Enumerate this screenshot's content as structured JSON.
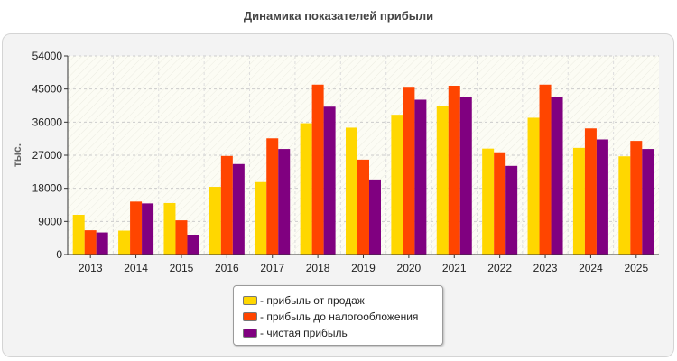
{
  "chart_data": {
    "type": "bar",
    "title": "Динамика показателей прибыли",
    "ylabel": "тыс.",
    "xlabel": "",
    "ylim": [
      0,
      54000
    ],
    "yticks": [
      0,
      9000,
      18000,
      27000,
      36000,
      45000,
      54000
    ],
    "grid": true,
    "legend_position": "bottom-center",
    "categories": [
      "2013",
      "2014",
      "2015",
      "2016",
      "2017",
      "2018",
      "2019",
      "2020",
      "2021",
      "2022",
      "2023",
      "2024",
      "2025"
    ],
    "series": [
      {
        "name": "- прибыль от продаж",
        "color": "#ffd700",
        "values": [
          10800,
          6500,
          14000,
          18400,
          19700,
          35700,
          34500,
          38000,
          40500,
          28800,
          37200,
          29000,
          26700
        ]
      },
      {
        "name": "- прибыль до налогообложения",
        "color": "#ff4500",
        "values": [
          6600,
          14400,
          9300,
          26800,
          31600,
          46200,
          25800,
          45600,
          45900,
          27800,
          46200,
          34300,
          30900
        ]
      },
      {
        "name": "- чистая прибыль",
        "color": "#800080",
        "values": [
          6000,
          13900,
          5400,
          24600,
          28700,
          40200,
          20400,
          42100,
          42900,
          24100,
          42900,
          31300,
          28700
        ]
      }
    ]
  }
}
